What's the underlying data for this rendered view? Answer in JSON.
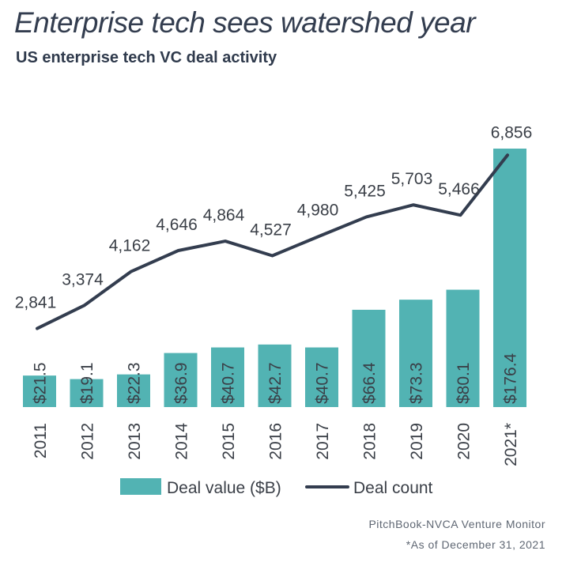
{
  "title": "Enterprise tech sees watershed year",
  "subtitle": "US enterprise tech VC deal activity",
  "source": "PitchBook-NVCA Venture Monitor",
  "footnote": "*As of  December 31, 2021",
  "colors": {
    "bar": "#52b3b3",
    "line": "#333d4f",
    "text": "#3a3f47"
  },
  "chart_data": {
    "type": "bar",
    "categories": [
      "2011",
      "2012",
      "2013",
      "2014",
      "2015",
      "2016",
      "2017",
      "2018",
      "2019",
      "2020",
      "2021*"
    ],
    "series": [
      {
        "name": "Deal value ($B)",
        "type": "bar",
        "values": [
          21.5,
          19.1,
          22.3,
          36.9,
          40.7,
          42.7,
          40.7,
          66.4,
          73.3,
          80.1,
          176.4
        ],
        "labels": [
          "$21.5",
          "$19.1",
          "$22.3",
          "$36.9",
          "$40.7",
          "$42.7",
          "$40.7",
          "$66.4",
          "$73.3",
          "$80.1",
          "$176.4"
        ]
      },
      {
        "name": "Deal count",
        "type": "line",
        "values": [
          2841,
          3374,
          4162,
          4646,
          4864,
          4527,
          4980,
          5425,
          5703,
          5466,
          6856
        ],
        "labels": [
          "2,841",
          "3,374",
          "4,162",
          "4,646",
          "4,864",
          "4,527",
          "4,980",
          "5,425",
          "5,703",
          "5,466",
          "6,856"
        ]
      }
    ],
    "legend": {
      "position": "bottom",
      "items": [
        "Deal value ($B)",
        "Deal count"
      ]
    },
    "grid": false
  }
}
